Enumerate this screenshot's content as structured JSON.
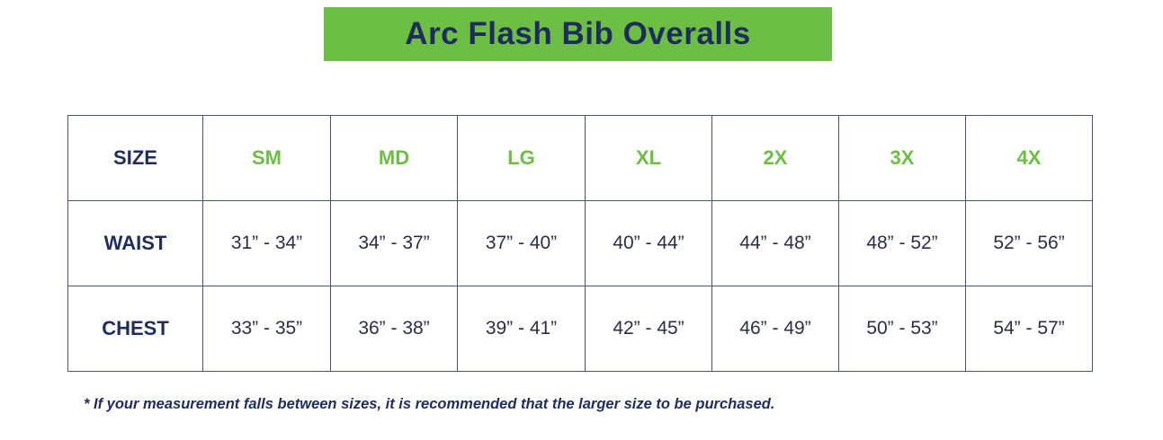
{
  "title": "Arc Flash Bib Overalls",
  "colors": {
    "green": "#6dbe45",
    "navy": "#1f2d5c"
  },
  "table": {
    "header": {
      "label": "SIZE",
      "sizes": [
        "SM",
        "MD",
        "LG",
        "XL",
        "2X",
        "3X",
        "4X"
      ]
    },
    "rows": [
      {
        "label": "WAIST",
        "values": [
          "31” - 34”",
          "34” - 37”",
          "37” - 40”",
          "40” - 44”",
          "44” - 48”",
          "48” - 52”",
          "52” - 56”"
        ]
      },
      {
        "label": "CHEST",
        "values": [
          "33” - 35”",
          "36” - 38”",
          "39” - 41”",
          "42” - 45”",
          "46” - 49”",
          "50” - 53”",
          "54” - 57”"
        ]
      }
    ]
  },
  "footnote": "* If your measurement falls between sizes, it is recommended that the larger size to be purchased."
}
